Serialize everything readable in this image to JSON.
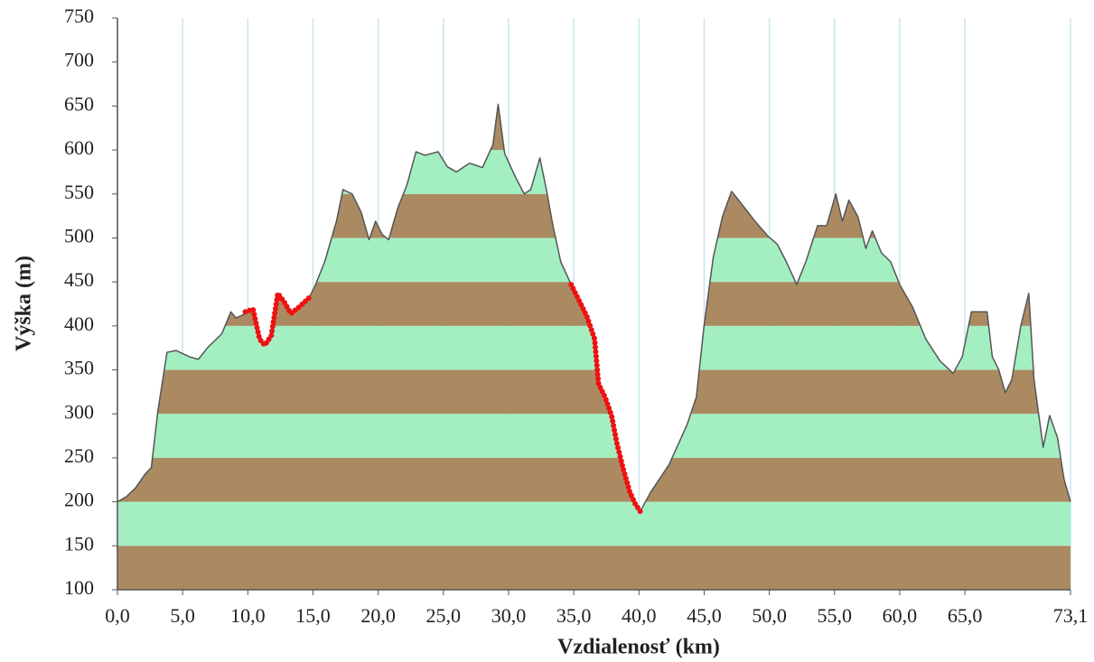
{
  "chart_data": {
    "type": "area",
    "x_label": "Vzdialenosť (km)",
    "y_label": "Výška (m)",
    "xlim": [
      0,
      73.1
    ],
    "ylim": [
      100,
      750
    ],
    "xticks": [
      {
        "value": 0,
        "label": "0,0"
      },
      {
        "value": 5,
        "label": "5,0"
      },
      {
        "value": 10,
        "label": "10,0"
      },
      {
        "value": 15,
        "label": "15,0"
      },
      {
        "value": 20,
        "label": "20,0"
      },
      {
        "value": 25,
        "label": "25,0"
      },
      {
        "value": 30,
        "label": "30,0"
      },
      {
        "value": 35,
        "label": "35,0"
      },
      {
        "value": 40,
        "label": "40,0"
      },
      {
        "value": 45,
        "label": "45,0"
      },
      {
        "value": 50,
        "label": "50,0"
      },
      {
        "value": 55,
        "label": "55,0"
      },
      {
        "value": 60,
        "label": "60,0"
      },
      {
        "value": 65,
        "label": "65,0"
      },
      {
        "value": 73.1,
        "label": "73,1"
      }
    ],
    "yticks": [
      100,
      150,
      200,
      250,
      300,
      350,
      400,
      450,
      500,
      550,
      600,
      650,
      700,
      750
    ],
    "grid_color": "#c8e6f0",
    "band_colors": [
      "#ab8a62",
      "#a4efc2"
    ],
    "series": [
      {
        "color": "#555555",
        "x": [
          0,
          0.7,
          1.4,
          2.1,
          2.6,
          3.1,
          3.8,
          4.5,
          5.5,
          6.2,
          6.9,
          8.0,
          8.7,
          9.1,
          9.7,
          10.4,
          10.9,
          11.3,
          11.8,
          12.3,
          12.8,
          13.3,
          13.9,
          14.7,
          15.2,
          15.9,
          16.8,
          17.3,
          18.0,
          18.7,
          19.3,
          19.8,
          20.3,
          20.8,
          21.5,
          22.2,
          22.9,
          23.6,
          24.6,
          25.3,
          26.0,
          27.0,
          28.0,
          28.8,
          29.2,
          29.7,
          30.5,
          31.2,
          31.7,
          32.4,
          32.9,
          33.4,
          34.0,
          34.8,
          35.3,
          36.0,
          36.6,
          36.9,
          37.4,
          37.9,
          38.3,
          38.8,
          39.3,
          39.7,
          40.1,
          40.9,
          42.3,
          43.7,
          44.4,
          45.0,
          45.7,
          46.4,
          47.1,
          47.8,
          48.9,
          49.9,
          50.6,
          51.3,
          52.1,
          52.8,
          53.7,
          54.4,
          55.1,
          55.6,
          56.1,
          56.8,
          57.4,
          57.9,
          58.6,
          59.3,
          60.0,
          61.0,
          62.0,
          63.1,
          64.1,
          64.8,
          65.5,
          66.2,
          66.7,
          67.1,
          67.6,
          68.1,
          68.6,
          69.3,
          69.9,
          70.3,
          71.0,
          71.5,
          72.1,
          72.6,
          73.1
        ],
        "values": [
          200,
          206,
          216,
          231,
          239,
          303,
          370,
          372,
          365,
          362,
          375,
          391,
          416,
          409,
          413,
          419,
          385,
          378,
          389,
          437,
          427,
          414,
          421,
          432,
          447,
          473,
          519,
          555,
          550,
          529,
          498,
          519,
          504,
          498,
          534,
          560,
          598,
          594,
          598,
          581,
          575,
          585,
          580,
          606,
          652,
          596,
          570,
          550,
          555,
          591,
          555,
          514,
          473,
          447,
          432,
          411,
          385,
          334,
          319,
          298,
          267,
          237,
          211,
          198,
          189,
          211,
          242,
          288,
          319,
          401,
          478,
          524,
          553,
          540,
          519,
          502,
          493,
          473,
          447,
          473,
          514,
          514,
          550,
          519,
          543,
          524,
          488,
          508,
          483,
          473,
          447,
          421,
          385,
          360,
          346,
          365,
          416,
          416,
          416,
          365,
          350,
          324,
          339,
          401,
          437,
          339,
          262,
          298,
          273,
          226,
          200
        ]
      },
      {
        "color": "#ee1111",
        "x": [
          9.8,
          10.4,
          10.9,
          11.3,
          11.8,
          12.3,
          12.8,
          13.3,
          13.9,
          14.7
        ],
        "values": [
          416,
          419,
          385,
          378,
          389,
          437,
          427,
          414,
          421,
          432
        ]
      },
      {
        "color": "#ee1111",
        "x": [
          34.8,
          35.3,
          36.0,
          36.6,
          36.9,
          37.4,
          37.9,
          38.3,
          38.8,
          39.3,
          39.7,
          40.1
        ],
        "values": [
          447,
          432,
          411,
          385,
          334,
          319,
          298,
          267,
          237,
          211,
          198,
          189
        ]
      }
    ]
  }
}
